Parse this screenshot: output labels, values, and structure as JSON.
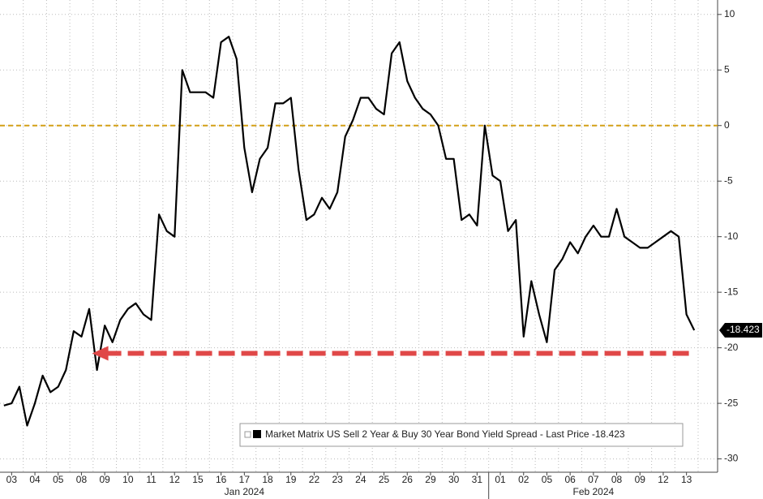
{
  "chart_data": {
    "type": "line",
    "categories": [
      null,
      "03",
      null,
      null,
      "04",
      null,
      null,
      "05",
      null,
      null,
      "08",
      null,
      null,
      "09",
      null,
      null,
      "10",
      null,
      null,
      "11",
      null,
      null,
      "12",
      null,
      null,
      "15",
      null,
      null,
      "16",
      null,
      null,
      "17",
      null,
      null,
      "18",
      null,
      null,
      "19",
      null,
      null,
      "22",
      null,
      null,
      "23",
      null,
      null,
      "24",
      null,
      null,
      "25",
      null,
      null,
      "26",
      null,
      null,
      "29",
      null,
      null,
      "30",
      null,
      null,
      "31",
      null,
      null,
      "01",
      null,
      null,
      "02",
      null,
      null,
      "05",
      null,
      null,
      "06",
      null,
      null,
      "07",
      null,
      null,
      "08",
      null,
      null,
      "09",
      null,
      null,
      "12",
      null,
      null,
      "13",
      null
    ],
    "month_labels": [
      {
        "label": "Jan 2024",
        "start": 0,
        "end": 63
      },
      {
        "label": "Feb 2024",
        "start": 63,
        "end": 90
      }
    ],
    "series": [
      {
        "name": "Market Matrix US Sell 2 Year & Buy 30 Year Bond Yield Spread - Last Price -18.423",
        "color": "#000000",
        "values": [
          -25.2,
          -25,
          -23.5,
          -27,
          -25,
          -22.5,
          -24,
          -23.5,
          -22,
          -18.5,
          -19,
          -16.5,
          -22,
          -18,
          -19.5,
          -17.5,
          -16.5,
          -16,
          -17,
          -17.5,
          -8,
          -9.5,
          -10,
          5,
          3,
          3,
          3,
          2.5,
          7.5,
          8,
          6,
          -2,
          -6,
          -3,
          -2,
          2,
          2,
          2.5,
          -4,
          -8.5,
          -8,
          -6.5,
          -7.5,
          -6,
          -1,
          0.5,
          2.5,
          2.5,
          1.5,
          1,
          6.5,
          7.5,
          4,
          2.5,
          1.5,
          1,
          0,
          -3,
          -3,
          -8.5,
          -8,
          -9,
          0,
          -4.5,
          -5,
          -9.5,
          -8.5,
          -19,
          -14,
          -17,
          -19.5,
          -13,
          -12,
          -10.5,
          -11.5,
          -10,
          -9,
          -10,
          -10,
          -7.5,
          -10,
          -10.5,
          -11,
          -11,
          -10.5,
          -10,
          -9.5,
          -10,
          -17,
          -18.423
        ]
      }
    ],
    "last_price": -18.423,
    "reference_line": {
      "value": 0,
      "color": "#d4a017"
    },
    "arrow_line": {
      "value": -20.5,
      "color": "#e04848"
    },
    "ylim": [
      -31.2,
      11.3
    ],
    "yticks": [
      10,
      5,
      0,
      -5,
      -10,
      -15,
      -20,
      -25,
      -30
    ],
    "grid": true
  }
}
